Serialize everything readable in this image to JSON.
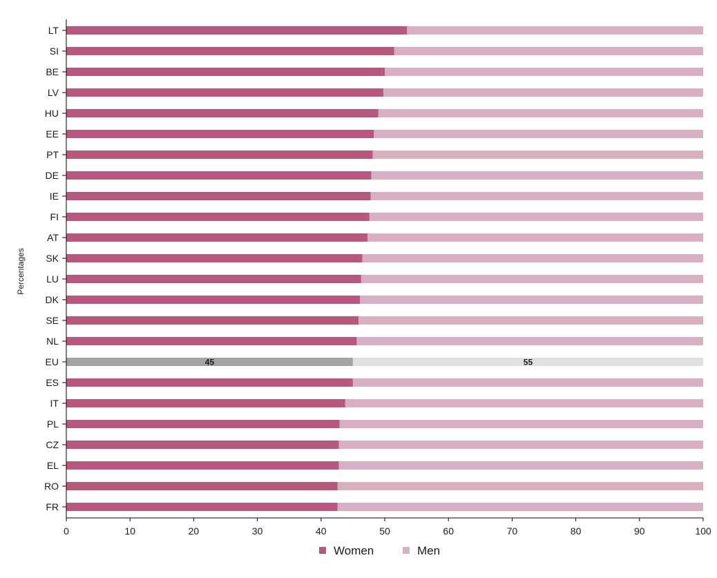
{
  "chart_data": {
    "type": "bar",
    "orientation": "horizontal",
    "stacked": true,
    "title": "",
    "xlabel": "",
    "ylabel": "Percentages",
    "xlim": [
      0,
      100
    ],
    "x_ticks": [
      "0",
      "10",
      "20",
      "30",
      "40",
      "50",
      "60",
      "70",
      "80",
      "90",
      "100"
    ],
    "categories": [
      "LT",
      "SI",
      "BE",
      "LV",
      "HU",
      "EE",
      "PT",
      "DE",
      "IE",
      "FI",
      "AT",
      "SK",
      "LU",
      "DK",
      "SE",
      "NL",
      "EU",
      "ES",
      "IT",
      "PL",
      "CZ",
      "EL",
      "RO",
      "FR"
    ],
    "series": [
      {
        "name": "Women",
        "color": "#b8587f",
        "values": [
          53.5,
          51.5,
          50,
          49.8,
          49,
          48.3,
          48.1,
          47.9,
          47.8,
          47.6,
          47.3,
          46.5,
          46.3,
          46.1,
          45.9,
          45.6,
          45,
          45,
          43.8,
          42.9,
          42.8,
          42.8,
          42.6,
          42.6
        ]
      },
      {
        "name": "Men",
        "color": "#d8aec2",
        "values": [
          46.5,
          48.5,
          50,
          50.2,
          51,
          51.7,
          51.9,
          52.1,
          52.2,
          52.4,
          52.7,
          53.5,
          53.7,
          53.9,
          54.1,
          54.4,
          55,
          55,
          56.2,
          57.1,
          57.2,
          57.2,
          57.4,
          57.4
        ]
      }
    ],
    "highlight": {
      "category": "EU",
      "colors": [
        "#a3a3a3",
        "#e0e0e0"
      ],
      "labels": [
        "45",
        "55"
      ]
    },
    "grid": false,
    "legend": {
      "position": "bottom-center",
      "entries": [
        "Women",
        "Men"
      ]
    }
  }
}
